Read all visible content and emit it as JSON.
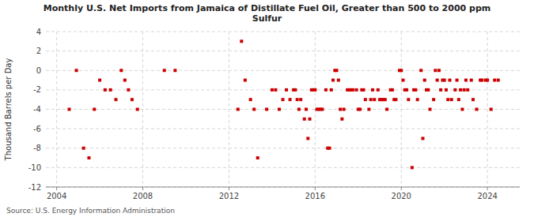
{
  "chart_data": {
    "type": "scatter",
    "title": "Monthly U.S. Net Imports from Jamaica of Distillate Fuel Oil, Greater than 500 to 2000 ppm\nSulfur",
    "ylabel": "Thousand Barrels per Day",
    "source": "Source: U.S. Energy Information Administration",
    "color": "#cc0000",
    "marker": "square",
    "grid": true,
    "xlim": [
      2003.5,
      2025.5
    ],
    "xticks": [
      2004,
      2008,
      2012,
      2016,
      2020,
      2024
    ],
    "ylim": [
      -12,
      4
    ],
    "yticks": [
      -12,
      -10,
      -8,
      -6,
      -4,
      -2,
      0,
      2,
      4
    ],
    "x": [
      2004.583,
      2004.917,
      2005.25,
      2005.5,
      2005.75,
      2006.0,
      2006.25,
      2006.5,
      2006.75,
      2007.0,
      2007.167,
      2007.333,
      2007.5,
      2007.75,
      2009.0,
      2009.5,
      2012.417,
      2012.583,
      2012.75,
      2013.0,
      2013.167,
      2013.333,
      2013.75,
      2014.0,
      2014.167,
      2014.333,
      2014.5,
      2014.667,
      2014.833,
      2015.0,
      2015.083,
      2015.167,
      2015.25,
      2015.333,
      2015.5,
      2015.583,
      2015.667,
      2015.75,
      2015.833,
      2015.917,
      2016.0,
      2016.083,
      2016.167,
      2016.25,
      2016.333,
      2016.5,
      2016.583,
      2016.667,
      2016.75,
      2016.833,
      2016.917,
      2017.0,
      2017.083,
      2017.167,
      2017.25,
      2017.333,
      2017.5,
      2017.583,
      2017.667,
      2017.75,
      2017.917,
      2018.0,
      2018.083,
      2018.167,
      2018.25,
      2018.333,
      2018.5,
      2018.583,
      2018.667,
      2018.75,
      2018.917,
      2019.0,
      2019.083,
      2019.167,
      2019.25,
      2019.333,
      2019.5,
      2019.583,
      2019.667,
      2019.75,
      2019.917,
      2020.0,
      2020.083,
      2020.167,
      2020.25,
      2020.333,
      2020.5,
      2020.583,
      2020.667,
      2020.75,
      2020.917,
      2021.0,
      2021.083,
      2021.167,
      2021.25,
      2021.333,
      2021.5,
      2021.583,
      2021.667,
      2021.75,
      2021.833,
      2021.917,
      2022.0,
      2022.083,
      2022.167,
      2022.25,
      2022.333,
      2022.5,
      2022.583,
      2022.667,
      2022.75,
      2022.833,
      2022.917,
      2023.0,
      2023.083,
      2023.25,
      2023.333,
      2023.5,
      2023.667,
      2023.75,
      2023.917,
      2024.0,
      2024.167,
      2024.333,
      2024.5
    ],
    "values": [
      -4.0,
      0.0,
      -8.0,
      -9.0,
      -4.0,
      -1.0,
      -2.0,
      -2.0,
      -3.0,
      0.0,
      -1.0,
      -2.0,
      -3.0,
      -4.0,
      0.0,
      0.0,
      -4.0,
      3.0,
      -1.0,
      -3.0,
      -4.0,
      -9.0,
      -4.0,
      -2.0,
      -2.0,
      -4.0,
      -3.0,
      -2.0,
      -3.0,
      -2.0,
      -2.0,
      -3.0,
      -4.0,
      -3.0,
      -5.0,
      -4.0,
      -7.0,
      -5.0,
      -2.0,
      -2.0,
      -2.0,
      -4.0,
      -4.0,
      -4.0,
      -4.0,
      -2.0,
      -8.0,
      -8.0,
      -2.0,
      -1.0,
      0.0,
      0.0,
      -1.0,
      -4.0,
      -5.0,
      -4.0,
      -2.0,
      -2.0,
      -2.0,
      -2.0,
      -2.0,
      -4.0,
      -4.0,
      -2.0,
      -2.0,
      -3.0,
      -4.0,
      -3.0,
      -2.0,
      -3.0,
      -2.0,
      -3.0,
      -3.0,
      -3.0,
      -3.0,
      -4.0,
      -2.0,
      -2.0,
      -3.0,
      -3.0,
      0.0,
      0.0,
      -1.0,
      -2.0,
      -2.0,
      -3.0,
      -10.0,
      -2.0,
      -2.0,
      -3.0,
      0.0,
      -7.0,
      -1.0,
      -2.0,
      -2.0,
      -4.0,
      -3.0,
      0.0,
      -1.0,
      0.0,
      -2.0,
      -1.0,
      -1.0,
      -2.0,
      -3.0,
      -1.0,
      -3.0,
      -2.0,
      -1.0,
      -3.0,
      -2.0,
      -4.0,
      -2.0,
      -1.0,
      -2.0,
      -1.0,
      -3.0,
      -4.0,
      -1.0,
      -1.0,
      -1.0,
      -1.0,
      -4.0,
      -1.0,
      -1.0
    ]
  }
}
